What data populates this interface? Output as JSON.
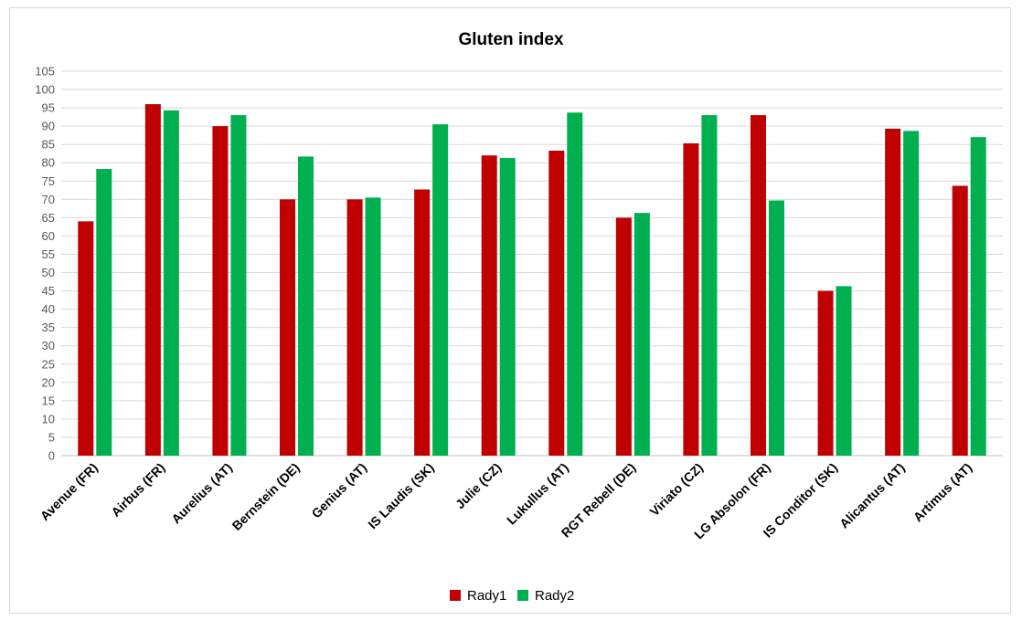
{
  "chart_data": {
    "type": "bar",
    "title": "Gluten index",
    "categories": [
      "Avenue (FR)",
      "Airbus (FR)",
      "Aurelius (AT)",
      "Bernstein (DE)",
      "Genius (AT)",
      "IS Laudis (SK)",
      "Julie (CZ)",
      "Lukullus (AT)",
      "RGT Rebell (DE)",
      "Viriato (CZ)",
      "LG Absolon (FR)",
      "IS Conditor (SK)",
      "Alicantus (AT)",
      "Artimus (AT)"
    ],
    "series": [
      {
        "name": "Rady1",
        "color": "#c00000",
        "values": [
          64,
          96,
          90,
          70,
          70,
          72.7,
          82,
          83.3,
          65,
          85.3,
          93,
          45,
          89.3,
          73.7
        ]
      },
      {
        "name": "Rady2",
        "color": "#00b050",
        "values": [
          78.3,
          94.3,
          93,
          81.7,
          70.5,
          90.5,
          81.3,
          93.7,
          66.3,
          93,
          69.7,
          46.3,
          88.7,
          87
        ]
      }
    ],
    "ylim": [
      0,
      105
    ],
    "ytick_step": 5,
    "grid": true,
    "legend_position": "bottom-center",
    "xlabel": "",
    "ylabel": ""
  }
}
